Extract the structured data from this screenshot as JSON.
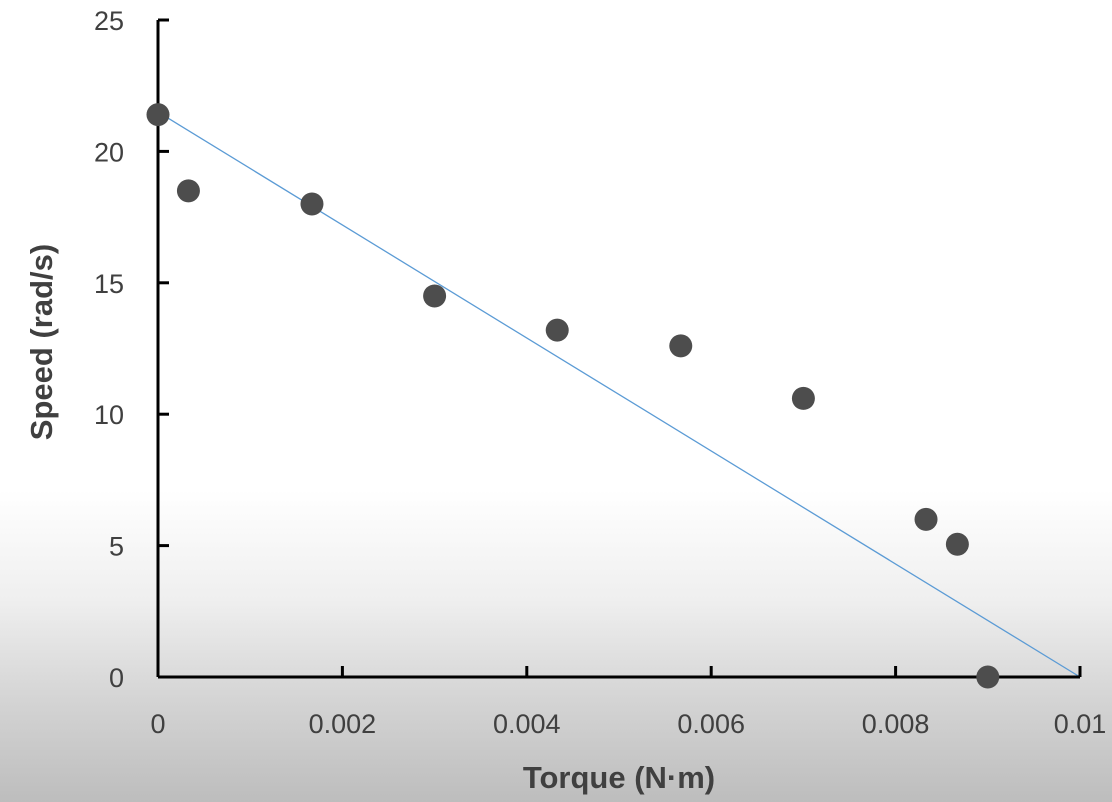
{
  "chart_data": {
    "type": "scatter",
    "title": "",
    "xlabel": "Torque (N·m)",
    "ylabel": "Speed (rad/s)",
    "xlim": [
      0,
      0.01
    ],
    "ylim": [
      0,
      25
    ],
    "xticks": [
      0,
      0.002,
      0.004,
      0.006,
      0.008,
      0.01
    ],
    "xtick_labels": [
      "0",
      "0.002",
      "0.004",
      "0.006",
      "0.008",
      "0.01"
    ],
    "yticks": [
      0,
      5,
      10,
      15,
      20,
      25
    ],
    "ytick_labels": [
      "0",
      "5",
      "10",
      "15",
      "20",
      "25"
    ],
    "grid": false,
    "marker_color": "#4d4d4d",
    "trendline_color": "#5b9bd5",
    "series": [
      {
        "x": [
          0,
          0.00033,
          0.00167,
          0.003,
          0.00433,
          0.00567,
          0.007,
          0.00833,
          0.00867,
          0.009
        ],
        "y": [
          21.4,
          18.5,
          18.0,
          14.5,
          13.2,
          12.6,
          10.6,
          6.0,
          5.05,
          0
        ]
      }
    ],
    "trendline": {
      "x": [
        0,
        0.01
      ],
      "y": [
        21.5,
        0
      ]
    }
  }
}
